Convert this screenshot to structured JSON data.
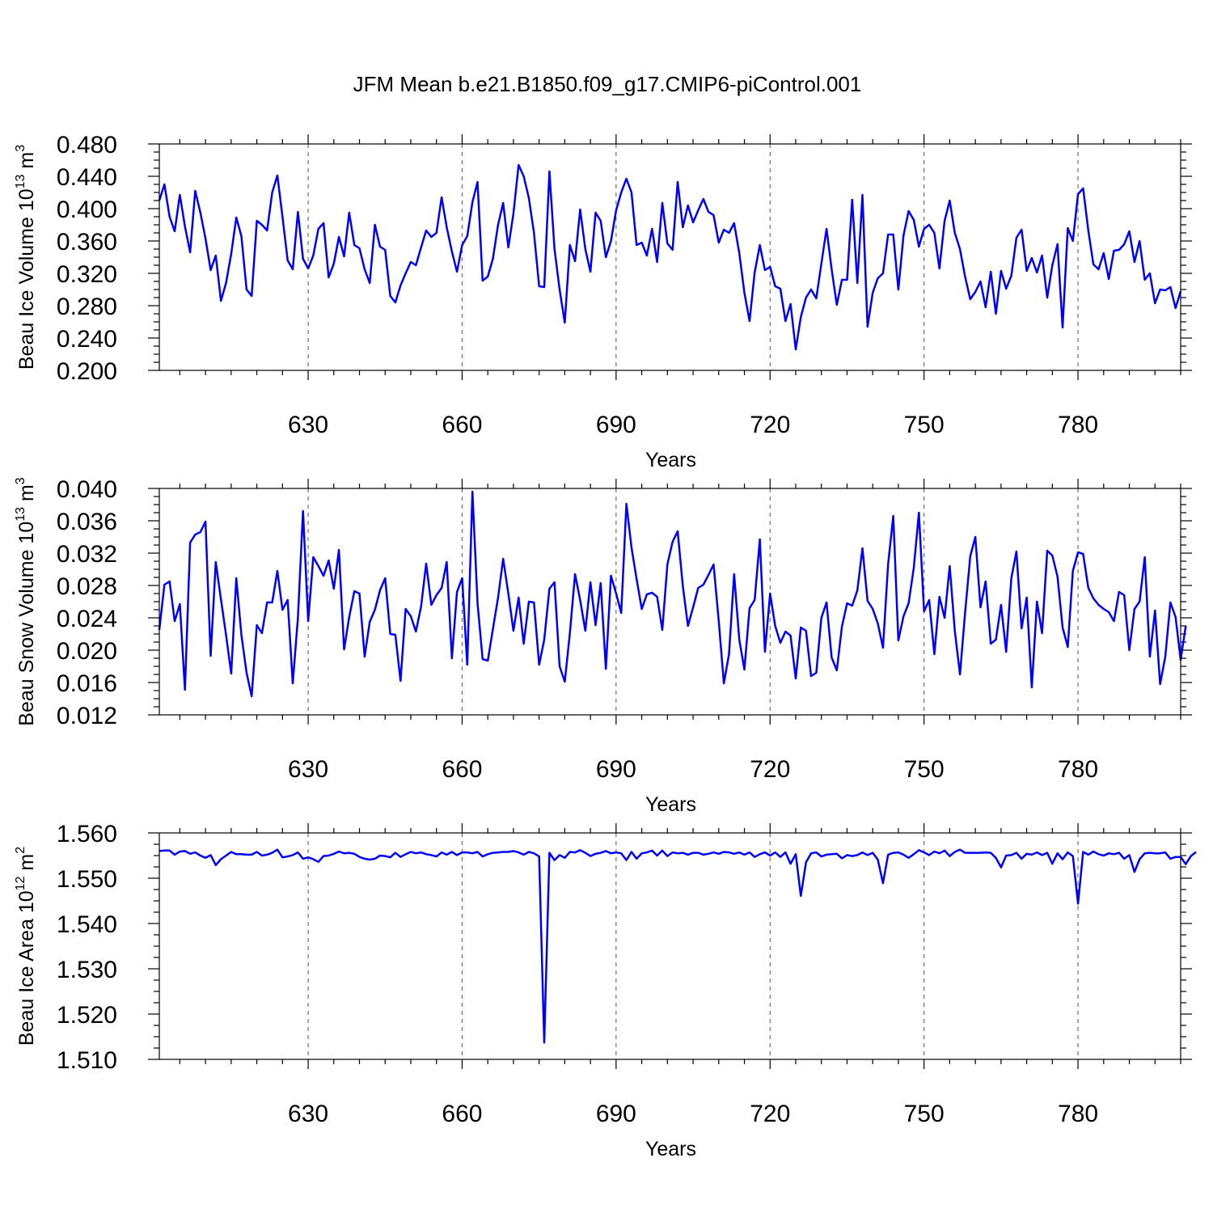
{
  "title": "JFM Mean b.e21.B1850.f09_g17.CMIP6-piControl.001",
  "chart_data": [
    {
      "type": "line",
      "ylabel_main": "Beau Ice Volume 10",
      "ylabel_exp": "13",
      "ylabel_unit": "m",
      "ylabel_unit_exp": "3",
      "xlabel": "Years",
      "xlim": [
        601,
        800
      ],
      "ylim": [
        0.2,
        0.48
      ],
      "x_ticks": [
        "630",
        "660",
        "690",
        "720",
        "750",
        "780"
      ],
      "y_ticks": [
        "0.200",
        "0.240",
        "0.280",
        "0.320",
        "0.360",
        "0.400",
        "0.440",
        "0.480"
      ],
      "grid": "vertical dashed at major x ticks",
      "color": "#0000ff",
      "x_start": 601,
      "values": [
        0.41,
        0.43,
        0.39,
        0.372,
        0.417,
        0.378,
        0.346,
        0.422,
        0.395,
        0.363,
        0.324,
        0.342,
        0.286,
        0.308,
        0.344,
        0.389,
        0.366,
        0.3,
        0.292,
        0.385,
        0.38,
        0.373,
        0.42,
        0.441,
        0.39,
        0.336,
        0.325,
        0.396,
        0.338,
        0.326,
        0.342,
        0.375,
        0.382,
        0.315,
        0.332,
        0.365,
        0.341,
        0.395,
        0.355,
        0.351,
        0.325,
        0.308,
        0.38,
        0.353,
        0.349,
        0.292,
        0.284,
        0.305,
        0.32,
        0.334,
        0.33,
        0.352,
        0.373,
        0.365,
        0.37,
        0.414,
        0.377,
        0.347,
        0.322,
        0.355,
        0.366,
        0.408,
        0.433,
        0.311,
        0.316,
        0.338,
        0.38,
        0.407,
        0.352,
        0.394,
        0.454,
        0.44,
        0.413,
        0.37,
        0.304,
        0.303,
        0.446,
        0.35,
        0.3,
        0.259,
        0.355,
        0.335,
        0.399,
        0.35,
        0.322,
        0.395,
        0.385,
        0.34,
        0.36,
        0.398,
        0.42,
        0.437,
        0.42,
        0.355,
        0.358,
        0.342,
        0.375,
        0.334,
        0.407,
        0.357,
        0.349,
        0.433,
        0.377,
        0.404,
        0.383,
        0.398,
        0.412,
        0.396,
        0.392,
        0.358,
        0.374,
        0.37,
        0.382,
        0.345,
        0.296,
        0.261,
        0.321,
        0.355,
        0.324,
        0.328,
        0.304,
        0.301,
        0.261,
        0.282,
        0.226,
        0.266,
        0.29,
        0.3,
        0.289,
        0.332,
        0.375,
        0.325,
        0.281,
        0.312,
        0.312,
        0.411,
        0.308,
        0.417,
        0.254,
        0.296,
        0.314,
        0.32,
        0.368,
        0.368,
        0.3,
        0.367,
        0.397,
        0.386,
        0.353,
        0.375,
        0.38,
        0.37,
        0.326,
        0.385,
        0.41,
        0.37,
        0.35,
        0.316,
        0.288,
        0.297,
        0.31,
        0.278,
        0.322,
        0.27,
        0.323,
        0.301,
        0.317,
        0.364,
        0.374,
        0.323,
        0.339,
        0.321,
        0.342,
        0.29,
        0.33,
        0.356,
        0.253,
        0.376,
        0.36,
        0.418,
        0.425,
        0.373,
        0.331,
        0.325,
        0.345,
        0.313,
        0.348,
        0.349,
        0.356,
        0.372,
        0.334,
        0.36,
        0.312,
        0.32,
        0.283,
        0.3,
        0.299,
        0.303,
        0.277,
        0.298
      ]
    },
    {
      "type": "line",
      "ylabel_main": "Beau Snow Volume 10",
      "ylabel_exp": "13",
      "ylabel_unit": "m",
      "ylabel_unit_exp": "3",
      "xlabel": "Years",
      "xlim": [
        601,
        800
      ],
      "ylim": [
        0.012,
        0.04
      ],
      "x_ticks": [
        "630",
        "660",
        "690",
        "720",
        "750",
        "780"
      ],
      "y_ticks": [
        "0.012",
        "0.016",
        "0.020",
        "0.024",
        "0.028",
        "0.032",
        "0.036",
        "0.040"
      ],
      "grid": "vertical dashed at major x ticks",
      "color": "#0000ff",
      "x_start": 601,
      "values": [
        0.0225,
        0.0281,
        0.0285,
        0.0236,
        0.0257,
        0.0151,
        0.0333,
        0.0343,
        0.0346,
        0.0359,
        0.0193,
        0.0309,
        0.0263,
        0.0219,
        0.0171,
        0.0289,
        0.0219,
        0.0172,
        0.0143,
        0.0231,
        0.0221,
        0.0259,
        0.0259,
        0.0298,
        0.025,
        0.0262,
        0.0159,
        0.024,
        0.0372,
        0.0236,
        0.0315,
        0.0304,
        0.0292,
        0.0311,
        0.0276,
        0.0324,
        0.0201,
        0.0241,
        0.0273,
        0.027,
        0.0192,
        0.0235,
        0.025,
        0.0274,
        0.0289,
        0.022,
        0.0219,
        0.0162,
        0.0251,
        0.0242,
        0.0223,
        0.0254,
        0.0307,
        0.0256,
        0.0268,
        0.0277,
        0.0309,
        0.019,
        0.0272,
        0.0289,
        0.0182,
        0.0396,
        0.0258,
        0.0189,
        0.0187,
        0.0226,
        0.0265,
        0.0313,
        0.027,
        0.0224,
        0.0265,
        0.0208,
        0.026,
        0.0259,
        0.0182,
        0.0213,
        0.0276,
        0.0284,
        0.018,
        0.0161,
        0.0221,
        0.0294,
        0.0262,
        0.0224,
        0.0284,
        0.0231,
        0.0283,
        0.0177,
        0.0292,
        0.027,
        0.0246,
        0.0381,
        0.0327,
        0.0288,
        0.0251,
        0.0269,
        0.0271,
        0.0266,
        0.0225,
        0.0306,
        0.0334,
        0.0347,
        0.0279,
        0.023,
        0.0253,
        0.0277,
        0.0281,
        0.0293,
        0.0306,
        0.0236,
        0.0159,
        0.0195,
        0.0294,
        0.0213,
        0.0176,
        0.0252,
        0.0262,
        0.0337,
        0.0198,
        0.027,
        0.023,
        0.0209,
        0.0223,
        0.0218,
        0.0165,
        0.0228,
        0.0224,
        0.0168,
        0.0172,
        0.024,
        0.0259,
        0.0191,
        0.0175,
        0.0229,
        0.0258,
        0.0255,
        0.0274,
        0.0326,
        0.0261,
        0.0251,
        0.0233,
        0.0203,
        0.0306,
        0.0366,
        0.0212,
        0.0242,
        0.0258,
        0.0302,
        0.037,
        0.0248,
        0.0262,
        0.0195,
        0.0266,
        0.024,
        0.0304,
        0.0224,
        0.017,
        0.0246,
        0.0316,
        0.034,
        0.0253,
        0.0285,
        0.0208,
        0.0213,
        0.0256,
        0.0198,
        0.0289,
        0.0322,
        0.0227,
        0.0265,
        0.0154,
        0.026,
        0.0221,
        0.0323,
        0.0317,
        0.0291,
        0.0228,
        0.0204,
        0.0298,
        0.0321,
        0.0319,
        0.0277,
        0.0264,
        0.0256,
        0.0251,
        0.0247,
        0.0236,
        0.0272,
        0.0268,
        0.02,
        0.0251,
        0.026,
        0.0315,
        0.0192,
        0.0249,
        0.0158,
        0.0192,
        0.0259,
        0.0241,
        0.0188,
        0.023
      ]
    },
    {
      "type": "line",
      "ylabel_main": "Beau Ice Area 10",
      "ylabel_exp": "12",
      "ylabel_unit": "m",
      "ylabel_unit_exp": "2",
      "xlabel": "Years",
      "xlim": [
        601,
        800
      ],
      "ylim": [
        1.51,
        1.56
      ],
      "x_ticks": [
        "630",
        "660",
        "690",
        "720",
        "750",
        "780"
      ],
      "y_ticks": [
        "1.510",
        "1.520",
        "1.530",
        "1.540",
        "1.550",
        "1.560"
      ],
      "grid": "vertical dashed at major x ticks",
      "color": "#0000ff",
      "x_start": 601,
      "values": [
        1.556,
        1.5561,
        1.5561,
        1.5552,
        1.5559,
        1.556,
        1.5554,
        1.5557,
        1.555,
        1.5545,
        1.5551,
        1.5529,
        1.5542,
        1.555,
        1.5558,
        1.5553,
        1.5553,
        1.5552,
        1.5552,
        1.5558,
        1.555,
        1.5552,
        1.5556,
        1.5563,
        1.5546,
        1.5548,
        1.5551,
        1.5557,
        1.5543,
        1.5546,
        1.5542,
        1.5536,
        1.5549,
        1.555,
        1.5554,
        1.5559,
        1.5555,
        1.5556,
        1.5554,
        1.5547,
        1.5543,
        1.5541,
        1.5543,
        1.555,
        1.5549,
        1.5546,
        1.5556,
        1.5547,
        1.5553,
        1.5558,
        1.5555,
        1.5557,
        1.5553,
        1.5551,
        1.5548,
        1.5557,
        1.5552,
        1.5558,
        1.5551,
        1.5557,
        1.5557,
        1.5555,
        1.5558,
        1.5548,
        1.5553,
        1.5556,
        1.5557,
        1.5558,
        1.5558,
        1.556,
        1.5557,
        1.5552,
        1.5558,
        1.5555,
        1.5548,
        1.5137,
        1.5556,
        1.554,
        1.5551,
        1.5545,
        1.5558,
        1.5557,
        1.5562,
        1.5556,
        1.5549,
        1.5554,
        1.5556,
        1.556,
        1.5555,
        1.5557,
        1.5555,
        1.554,
        1.5558,
        1.5543,
        1.5555,
        1.5557,
        1.5561,
        1.555,
        1.5561,
        1.5549,
        1.5557,
        1.5555,
        1.5556,
        1.5552,
        1.5556,
        1.5556,
        1.5552,
        1.5554,
        1.5557,
        1.5554,
        1.5558,
        1.5557,
        1.5554,
        1.5557,
        1.5552,
        1.5557,
        1.5547,
        1.5553,
        1.5557,
        1.555,
        1.5557,
        1.5547,
        1.5557,
        1.5532,
        1.5553,
        1.5461,
        1.5535,
        1.5555,
        1.5557,
        1.5548,
        1.5552,
        1.5553,
        1.5554,
        1.5544,
        1.5551,
        1.5549,
        1.5551,
        1.5557,
        1.5551,
        1.5556,
        1.5541,
        1.5489,
        1.5552,
        1.5556,
        1.5557,
        1.5552,
        1.5545,
        1.5553,
        1.5562,
        1.5557,
        1.5551,
        1.5559,
        1.5555,
        1.5561,
        1.5549,
        1.5558,
        1.5563,
        1.5556,
        1.5556,
        1.5556,
        1.5556,
        1.5557,
        1.5556,
        1.5545,
        1.5524,
        1.555,
        1.5551,
        1.5556,
        1.5543,
        1.5554,
        1.5552,
        1.5557,
        1.5551,
        1.5556,
        1.5532,
        1.5555,
        1.5542,
        1.5557,
        1.5549,
        1.5444,
        1.5558,
        1.5552,
        1.5559,
        1.5553,
        1.555,
        1.5555,
        1.5553,
        1.5556,
        1.5543,
        1.5551,
        1.5514,
        1.5542,
        1.5555,
        1.5556,
        1.5555,
        1.5555,
        1.5557,
        1.5543,
        1.5547,
        1.5547,
        1.5531,
        1.5549,
        1.5558
      ]
    }
  ]
}
